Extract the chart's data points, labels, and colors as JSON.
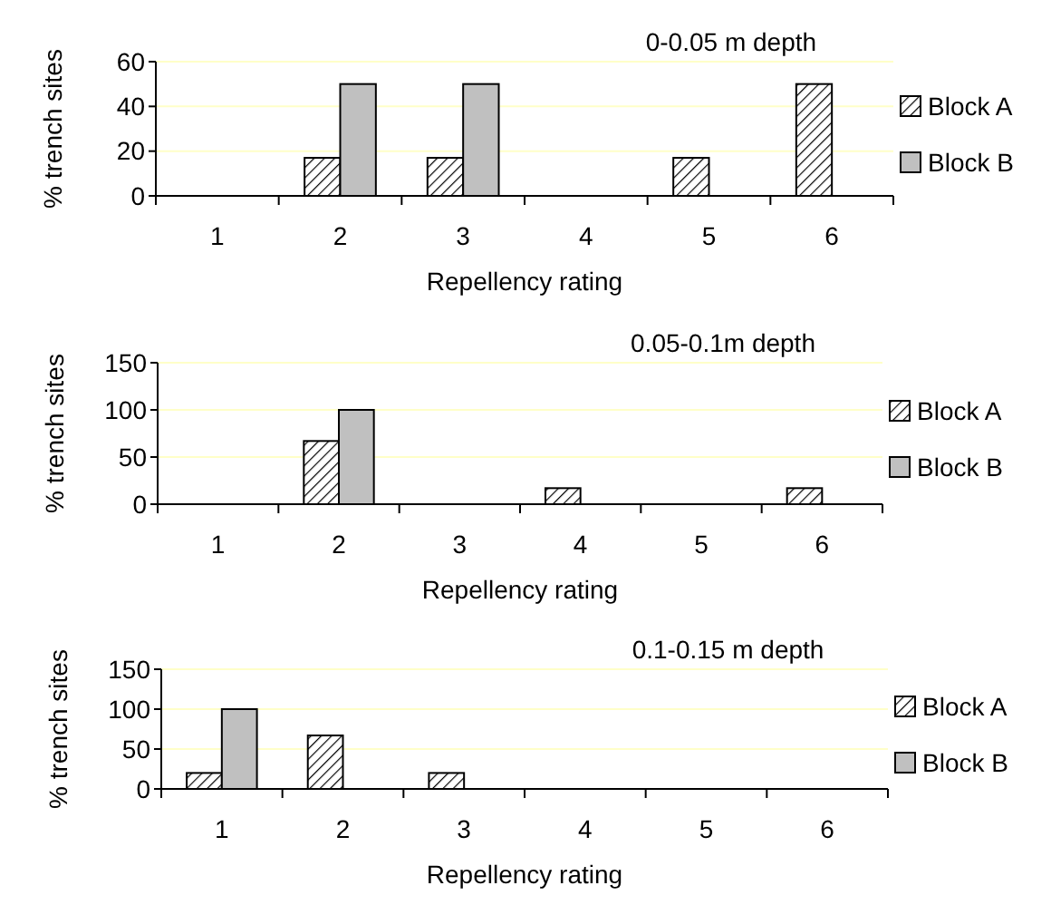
{
  "chart_data": [
    {
      "type": "bar",
      "title": "0-0.05 m depth",
      "xlabel": "Repellency rating",
      "ylabel": "% trench sites",
      "categories": [
        "1",
        "2",
        "3",
        "4",
        "5",
        "6"
      ],
      "ylim": [
        0,
        60
      ],
      "yticks": [
        0,
        20,
        40,
        60
      ],
      "grid": "y",
      "legend": "right",
      "series": [
        {
          "name": "Block A",
          "color": "#000000",
          "values": [
            0,
            17,
            17,
            0,
            17,
            50
          ]
        },
        {
          "name": "Block B",
          "color": "#c0c0c0",
          "values": [
            0,
            50,
            50,
            0,
            0,
            0
          ]
        }
      ]
    },
    {
      "type": "bar",
      "title": "0.05-0.1m depth",
      "xlabel": "Repellency rating",
      "ylabel": "% trench sites",
      "categories": [
        "1",
        "2",
        "3",
        "4",
        "5",
        "6"
      ],
      "ylim": [
        0,
        150
      ],
      "yticks": [
        0,
        50,
        100,
        150
      ],
      "grid": "y",
      "legend": "right",
      "series": [
        {
          "name": "Block A",
          "color": "#000000",
          "values": [
            0,
            67,
            0,
            17,
            0,
            17
          ]
        },
        {
          "name": "Block B",
          "color": "#c0c0c0",
          "values": [
            0,
            100,
            0,
            0,
            0,
            0
          ]
        }
      ]
    },
    {
      "type": "bar",
      "title": "0.1-0.15 m depth",
      "xlabel": "Repellency rating",
      "ylabel": "% trench sites",
      "categories": [
        "1",
        "2",
        "3",
        "4",
        "5",
        "6"
      ],
      "ylim": [
        0,
        150
      ],
      "yticks": [
        0,
        50,
        100,
        150
      ],
      "grid": "y",
      "legend": "right",
      "series": [
        {
          "name": "Block A",
          "color": "#000000",
          "values": [
            20,
            67,
            20,
            0,
            0,
            0
          ]
        },
        {
          "name": "Block B",
          "color": "#c0c0c0",
          "values": [
            100,
            0,
            0,
            0,
            0,
            0
          ]
        }
      ]
    }
  ]
}
